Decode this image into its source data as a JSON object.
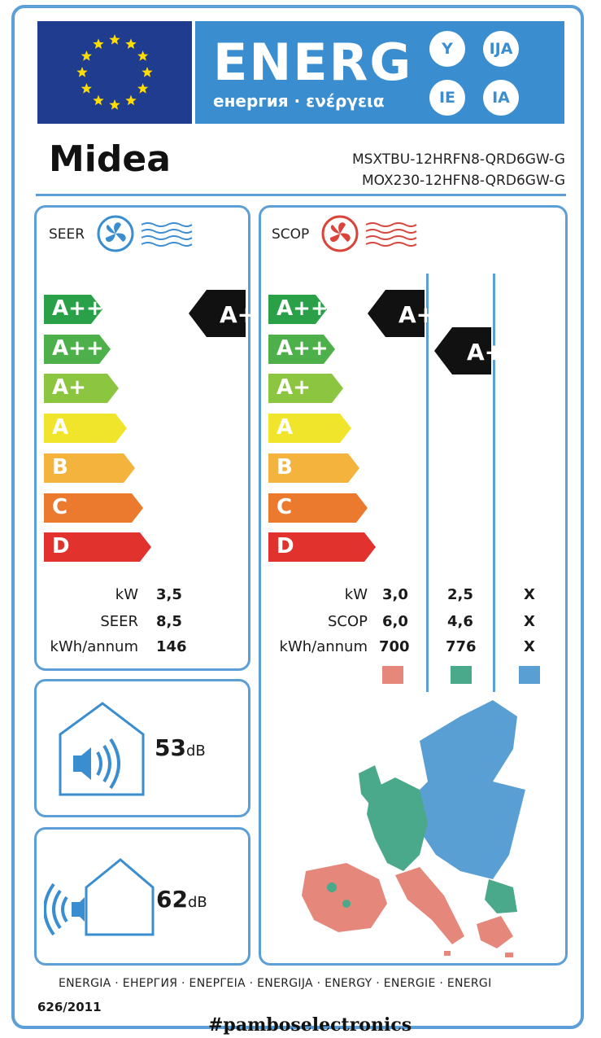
{
  "header": {
    "energy_word": "ENERG",
    "energy_sub": "енергия · ενέργεια",
    "lang_codes": [
      "Y",
      "IJA",
      "IE",
      "IA"
    ]
  },
  "brand": {
    "name": "Midea"
  },
  "models": {
    "indoor": "MSXTBU-12HRFN8-QRD6GW-G",
    "outdoor": "MOX230-12HFN8-QRD6GW-G"
  },
  "cooling": {
    "label": "SEER",
    "scale": [
      "A+++",
      "A++",
      "A+",
      "A",
      "B",
      "C",
      "D"
    ],
    "rating": "A+++",
    "rows": [
      {
        "label": "kW",
        "value": "3,5"
      },
      {
        "label": "SEER",
        "value": "8,5"
      },
      {
        "label": "kWh/annum",
        "value": "146"
      }
    ]
  },
  "heating": {
    "label": "SCOP",
    "scale": [
      "A+++",
      "A++",
      "A+",
      "A",
      "B",
      "C",
      "D"
    ],
    "rating_warm": "A+++",
    "rating_average": "A++",
    "rows": [
      {
        "label": "kW",
        "warm": "3,0",
        "average": "2,5",
        "cold": "X"
      },
      {
        "label": "SCOP",
        "warm": "6,0",
        "average": "4,6",
        "cold": "X"
      },
      {
        "label": "kWh/annum",
        "warm": "700",
        "average": "776",
        "cold": "X"
      }
    ],
    "zone_colors": {
      "warm": "#e5877b",
      "average": "#4aa98a",
      "cold": "#5a9fd4"
    }
  },
  "noise": {
    "indoor": {
      "value": "53",
      "unit": "dB"
    },
    "outdoor": {
      "value": "62",
      "unit": "dB"
    }
  },
  "footer": {
    "languages": "ENERGIA · ЕНЕРГИЯ · ΕΝΕΡΓΕΙΑ · ENERGIJA · ENERGY · ENERGIE · ENERGI",
    "regulation": "626/2011"
  },
  "watermark": "#pamboselectronics",
  "colors": {
    "frame_blue": "#5b9fd6",
    "eu_blue": "#1f3c8f",
    "energy_blue": "#3a8ed0",
    "class_colors": [
      "#2aa048",
      "#4db04a",
      "#8cc540",
      "#f1e52b",
      "#f3b33c",
      "#ec7a2e",
      "#e1322d"
    ]
  }
}
